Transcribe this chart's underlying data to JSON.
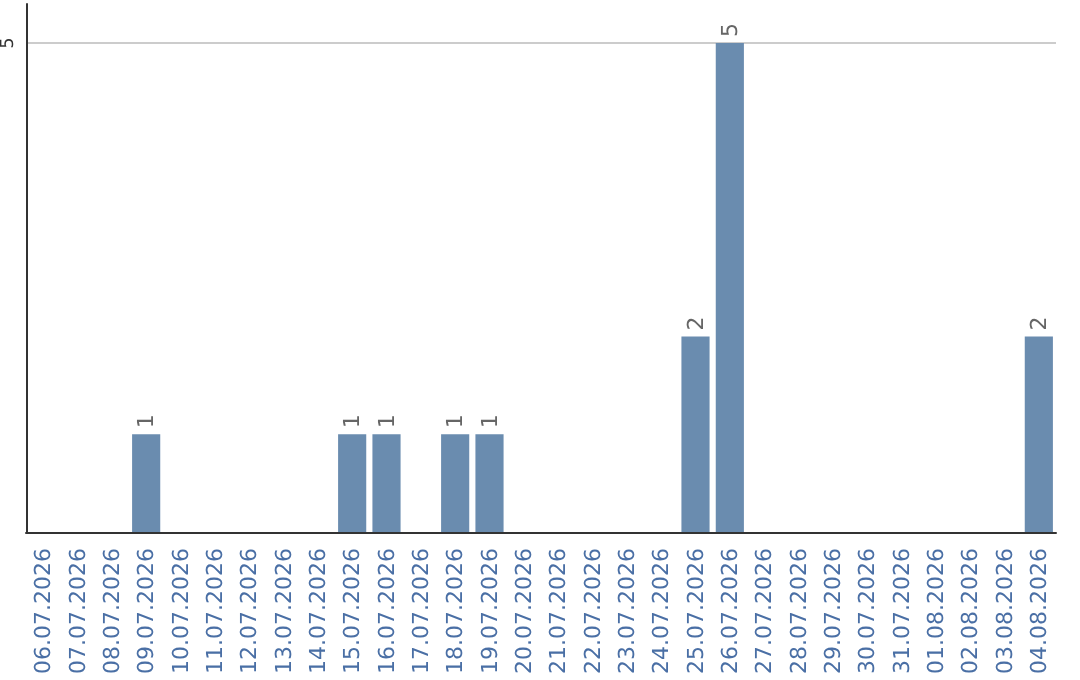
{
  "chart_data": {
    "type": "bar",
    "categories": [
      "06.07.2026",
      "07.07.2026",
      "08.07.2026",
      "09.07.2026",
      "10.07.2026",
      "11.07.2026",
      "12.07.2026",
      "13.07.2026",
      "14.07.2026",
      "15.07.2026",
      "16.07.2026",
      "17.07.2026",
      "18.07.2026",
      "19.07.2026",
      "20.07.2026",
      "21.07.2026",
      "22.07.2026",
      "23.07.2026",
      "24.07.2026",
      "25.07.2026",
      "26.07.2026",
      "27.07.2026",
      "28.07.2026",
      "29.07.2026",
      "30.07.2026",
      "31.07.2026",
      "01.08.2026",
      "02.08.2026",
      "03.08.2026",
      "04.08.2026"
    ],
    "values": [
      0,
      0,
      0,
      1,
      0,
      0,
      0,
      0,
      0,
      1,
      1,
      0,
      1,
      1,
      0,
      0,
      0,
      0,
      0,
      2,
      5,
      0,
      0,
      0,
      0,
      0,
      0,
      0,
      0,
      2
    ],
    "value_labels": [
      null,
      null,
      null,
      "1",
      null,
      null,
      null,
      null,
      null,
      "1",
      "1",
      null,
      "1",
      "1",
      null,
      null,
      null,
      null,
      null,
      "2",
      "5",
      null,
      null,
      null,
      null,
      null,
      null,
      null,
      null,
      "2"
    ],
    "color": "#6a8caf",
    "ylim": [
      0,
      5.4
    ],
    "yticks": [
      5
    ],
    "grid": "y"
  }
}
